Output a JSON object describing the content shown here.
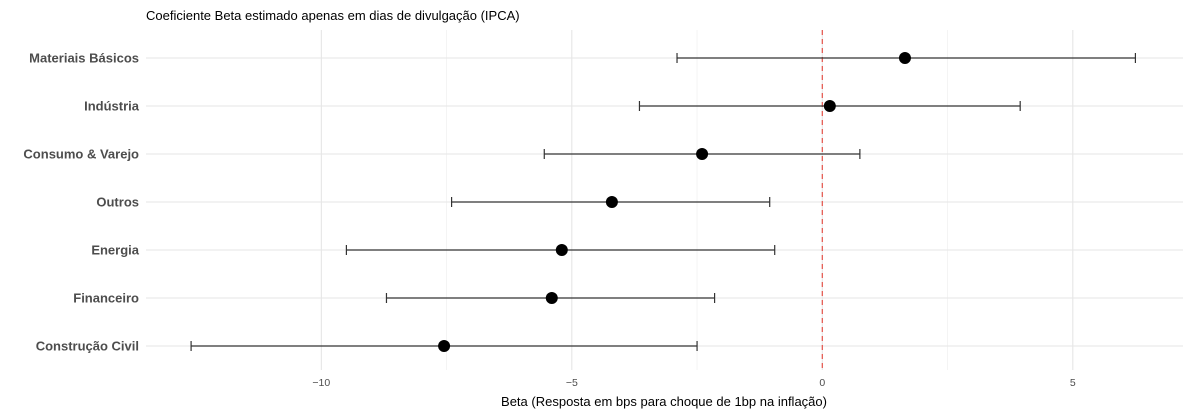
{
  "chart_data": {
    "type": "scatter",
    "subtitle": "Coeficiente Beta estimado apenas em dias de divulgação (IPCA)",
    "xlabel": "Beta (Resposta em bps para choque de 1bp na inflação)",
    "ylabel": "",
    "xlim": [
      -13.5,
      7.2
    ],
    "x_ticks": [
      -10,
      -5,
      0,
      5
    ],
    "x_tick_labels": [
      "−10",
      "−5",
      "0",
      "5"
    ],
    "reference_line": {
      "x": 0,
      "color": "#e5534b",
      "style": "dashed"
    },
    "grid": true,
    "point_color": "#000000",
    "errorbar_color": "#333333",
    "categories": [
      "Materiais Básicos",
      "Indústria",
      "Consumo & Varejo",
      "Outros",
      "Energia",
      "Financeiro",
      "Construção Civil"
    ],
    "estimates": [
      1.65,
      0.15,
      -2.4,
      -4.2,
      -5.2,
      -5.4,
      -7.55
    ],
    "ci_low": [
      -2.9,
      -3.65,
      -5.55,
      -7.4,
      -9.5,
      -8.7,
      -12.6
    ],
    "ci_high": [
      6.25,
      3.95,
      0.75,
      -1.05,
      -0.95,
      -2.15,
      -2.5
    ]
  }
}
